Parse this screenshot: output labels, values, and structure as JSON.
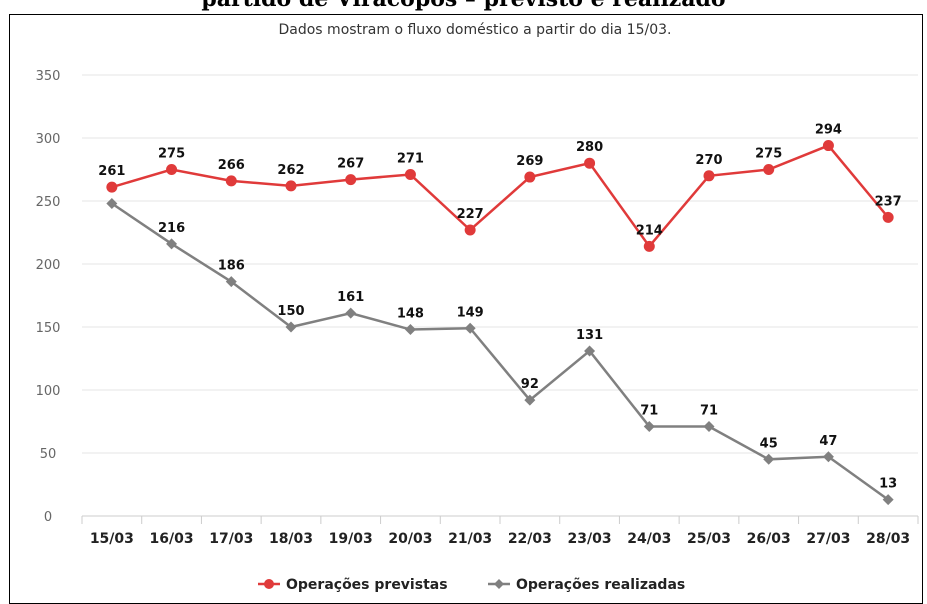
{
  "title": "partido de Viracopos – previsto e realizado",
  "chart_data": {
    "type": "line",
    "subtitle": "Dados mostram o fluxo doméstico a partir do dia 15/03.",
    "categories": [
      "15/03",
      "16/03",
      "17/03",
      "18/03",
      "19/03",
      "20/03",
      "21/03",
      "22/03",
      "23/03",
      "24/03",
      "25/03",
      "26/03",
      "27/03",
      "28/03"
    ],
    "ylim": [
      0,
      350
    ],
    "yticks": [
      "0",
      "50",
      "100",
      "150",
      "200",
      "250",
      "300",
      "350"
    ],
    "grid": true,
    "legend_position": "bottom",
    "series": [
      {
        "name": "Operações previstas",
        "color": "#e03a3a",
        "marker": "circle",
        "values": [
          261,
          275,
          266,
          262,
          267,
          271,
          227,
          269,
          280,
          214,
          270,
          275,
          294,
          237
        ],
        "labels": [
          "261",
          "275",
          "266",
          "262",
          "267",
          "271",
          "227",
          "269",
          "280",
          "214",
          "270",
          "275",
          "294",
          "237"
        ]
      },
      {
        "name": "Operações realizadas",
        "color": "#808080",
        "marker": "diamond",
        "values": [
          248,
          216,
          186,
          150,
          161,
          148,
          149,
          92,
          131,
          71,
          71,
          45,
          47,
          13
        ],
        "labels": [
          "",
          "216",
          "186",
          "150",
          "161",
          "148",
          "149",
          "92",
          "131",
          "71",
          "71",
          "45",
          "47",
          "13"
        ]
      }
    ]
  }
}
